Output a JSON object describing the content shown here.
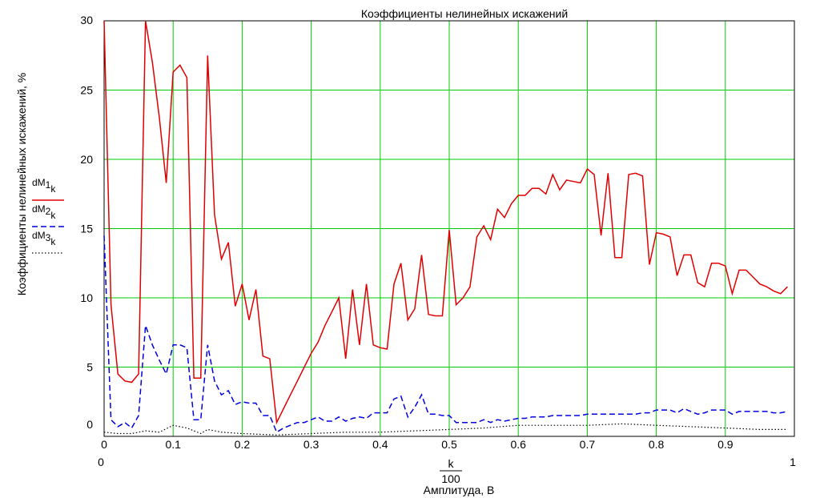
{
  "chart_data": {
    "type": "line",
    "title": "Коэффициенты нелинейных искажений",
    "xlabel": "Амплитуда, В",
    "ylabel": "Коэффициенты нелинейных искажений, %",
    "x_expr": {
      "numerator": "k",
      "denominator": "100"
    },
    "x_range_labels": {
      "min": "0",
      "max": "1"
    },
    "xlim": [
      0,
      1
    ],
    "ylim": [
      0,
      30
    ],
    "x_ticks": [
      "0",
      "0.1",
      "0.2",
      "0.3",
      "0.4",
      "0.5",
      "0.6",
      "0.7",
      "0.8",
      "0.9"
    ],
    "y_ticks": [
      {
        "value": 0,
        "label": "0"
      },
      {
        "value": 5,
        "label": "5"
      },
      {
        "value": 10,
        "label": "10"
      },
      {
        "value": 15,
        "label": "15"
      },
      {
        "value": 20,
        "label": "20"
      },
      {
        "value": 25,
        "label": "25"
      },
      {
        "value": 30,
        "label": "30"
      }
    ],
    "grid": true,
    "legend_position": "left",
    "series": [
      {
        "name": "dM1",
        "name_sub": "k",
        "color": "#e00000",
        "style": "solid",
        "points": [
          [
            0,
            30
          ],
          [
            0.01,
            9.5
          ],
          [
            0.02,
            4.5
          ],
          [
            0.03,
            4
          ],
          [
            0.04,
            3.9
          ],
          [
            0.05,
            4.5
          ],
          [
            0.06,
            30
          ],
          [
            0.07,
            27
          ],
          [
            0.08,
            23
          ],
          [
            0.09,
            18.3
          ],
          [
            0.1,
            26.3
          ],
          [
            0.11,
            26.8
          ],
          [
            0.12,
            25.9
          ],
          [
            0.13,
            4.2
          ],
          [
            0.14,
            4.2
          ],
          [
            0.15,
            27.5
          ],
          [
            0.16,
            16
          ],
          [
            0.17,
            12.8
          ],
          [
            0.18,
            14
          ],
          [
            0.19,
            9.4
          ],
          [
            0.2,
            11
          ],
          [
            0.21,
            8.4
          ],
          [
            0.22,
            10.6
          ],
          [
            0.23,
            5.8
          ],
          [
            0.24,
            5.6
          ],
          [
            0.25,
            1
          ],
          [
            0.26,
            2
          ],
          [
            0.27,
            3
          ],
          [
            0.28,
            4
          ],
          [
            0.29,
            5
          ],
          [
            0.3,
            6
          ],
          [
            0.31,
            6.8
          ],
          [
            0.32,
            8
          ],
          [
            0.33,
            9
          ],
          [
            0.34,
            10
          ],
          [
            0.35,
            5.6
          ],
          [
            0.36,
            10.6
          ],
          [
            0.37,
            6.6
          ],
          [
            0.38,
            11
          ],
          [
            0.39,
            6.6
          ],
          [
            0.4,
            6.4
          ],
          [
            0.41,
            6.3
          ],
          [
            0.42,
            11
          ],
          [
            0.43,
            12.5
          ],
          [
            0.44,
            8.4
          ],
          [
            0.45,
            9.2
          ],
          [
            0.46,
            13.1
          ],
          [
            0.47,
            8.8
          ],
          [
            0.48,
            8.7
          ],
          [
            0.49,
            8.7
          ],
          [
            0.5,
            14.9
          ],
          [
            0.51,
            9.5
          ],
          [
            0.52,
            10
          ],
          [
            0.53,
            10.8
          ],
          [
            0.54,
            14.4
          ],
          [
            0.55,
            15.2
          ],
          [
            0.56,
            14.2
          ],
          [
            0.57,
            16.4
          ],
          [
            0.58,
            15.8
          ],
          [
            0.59,
            16.8
          ],
          [
            0.6,
            17.4
          ],
          [
            0.61,
            17.4
          ],
          [
            0.62,
            17.9
          ],
          [
            0.63,
            17.9
          ],
          [
            0.64,
            17.5
          ],
          [
            0.65,
            18.9
          ],
          [
            0.66,
            17.8
          ],
          [
            0.67,
            18.5
          ],
          [
            0.68,
            18.4
          ],
          [
            0.69,
            18.3
          ],
          [
            0.7,
            19.3
          ],
          [
            0.71,
            18.9
          ],
          [
            0.72,
            14.5
          ],
          [
            0.73,
            19
          ],
          [
            0.74,
            12.9
          ],
          [
            0.75,
            12.9
          ],
          [
            0.76,
            18.9
          ],
          [
            0.77,
            19
          ],
          [
            0.78,
            18.8
          ],
          [
            0.79,
            12.4
          ],
          [
            0.8,
            14.7
          ],
          [
            0.81,
            14.6
          ],
          [
            0.82,
            14.4
          ],
          [
            0.83,
            11.6
          ],
          [
            0.84,
            13.1
          ],
          [
            0.85,
            13.1
          ],
          [
            0.86,
            11.1
          ],
          [
            0.87,
            10.8
          ],
          [
            0.88,
            12.5
          ],
          [
            0.89,
            12.5
          ],
          [
            0.9,
            12.3
          ],
          [
            0.91,
            10.3
          ],
          [
            0.92,
            12
          ],
          [
            0.93,
            12
          ],
          [
            0.94,
            11.5
          ],
          [
            0.95,
            11
          ],
          [
            0.96,
            10.8
          ],
          [
            0.97,
            10.5
          ],
          [
            0.98,
            10.3
          ],
          [
            0.99,
            10.8
          ]
        ]
      },
      {
        "name": "dM2",
        "name_sub": "k",
        "color": "#0000e0",
        "style": "dashed",
        "points": [
          [
            0,
            14.5
          ],
          [
            0.01,
            1.2
          ],
          [
            0.02,
            0.7
          ],
          [
            0.03,
            1
          ],
          [
            0.04,
            0.6
          ],
          [
            0.05,
            1.5
          ],
          [
            0.06,
            8
          ],
          [
            0.07,
            6.6
          ],
          [
            0.08,
            5.5
          ],
          [
            0.09,
            4.5
          ],
          [
            0.1,
            6.6
          ],
          [
            0.11,
            6.6
          ],
          [
            0.12,
            6.4
          ],
          [
            0.13,
            1.2
          ],
          [
            0.14,
            1.2
          ],
          [
            0.15,
            6.6
          ],
          [
            0.16,
            4
          ],
          [
            0.17,
            3
          ],
          [
            0.18,
            3.3
          ],
          [
            0.19,
            2.3
          ],
          [
            0.2,
            2.5
          ],
          [
            0.21,
            2.4
          ],
          [
            0.22,
            2.4
          ],
          [
            0.23,
            1.5
          ],
          [
            0.24,
            1.5
          ],
          [
            0.25,
            0.3
          ],
          [
            0.26,
            0.6
          ],
          [
            0.27,
            0.8
          ],
          [
            0.28,
            1
          ],
          [
            0.29,
            1
          ],
          [
            0.3,
            1.2
          ],
          [
            0.31,
            1.4
          ],
          [
            0.32,
            1.1
          ],
          [
            0.33,
            1.1
          ],
          [
            0.34,
            1.4
          ],
          [
            0.35,
            1.1
          ],
          [
            0.36,
            1.3
          ],
          [
            0.37,
            1.4
          ],
          [
            0.38,
            1.3
          ],
          [
            0.39,
            1.7
          ],
          [
            0.4,
            1.7
          ],
          [
            0.41,
            1.7
          ],
          [
            0.42,
            2.7
          ],
          [
            0.43,
            2.9
          ],
          [
            0.44,
            1.4
          ],
          [
            0.45,
            2.1
          ],
          [
            0.46,
            3
          ],
          [
            0.47,
            1.6
          ],
          [
            0.48,
            1.6
          ],
          [
            0.49,
            1.5
          ],
          [
            0.5,
            1.5
          ],
          [
            0.51,
            1
          ],
          [
            0.52,
            1
          ],
          [
            0.53,
            1
          ],
          [
            0.54,
            1
          ],
          [
            0.55,
            1.2
          ],
          [
            0.56,
            1
          ],
          [
            0.57,
            1.2
          ],
          [
            0.58,
            1.1
          ],
          [
            0.59,
            1.2
          ],
          [
            0.6,
            1.3
          ],
          [
            0.61,
            1.3
          ],
          [
            0.62,
            1.4
          ],
          [
            0.63,
            1.4
          ],
          [
            0.64,
            1.4
          ],
          [
            0.65,
            1.5
          ],
          [
            0.66,
            1.5
          ],
          [
            0.67,
            1.5
          ],
          [
            0.68,
            1.5
          ],
          [
            0.69,
            1.5
          ],
          [
            0.7,
            1.6
          ],
          [
            0.71,
            1.6
          ],
          [
            0.72,
            1.6
          ],
          [
            0.73,
            1.6
          ],
          [
            0.74,
            1.6
          ],
          [
            0.75,
            1.6
          ],
          [
            0.76,
            1.6
          ],
          [
            0.77,
            1.6
          ],
          [
            0.78,
            1.7
          ],
          [
            0.79,
            1.7
          ],
          [
            0.8,
            1.9
          ],
          [
            0.81,
            1.9
          ],
          [
            0.82,
            1.9
          ],
          [
            0.83,
            1.7
          ],
          [
            0.84,
            2
          ],
          [
            0.85,
            1.8
          ],
          [
            0.86,
            1.6
          ],
          [
            0.87,
            1.7
          ],
          [
            0.88,
            1.9
          ],
          [
            0.89,
            1.9
          ],
          [
            0.9,
            1.9
          ],
          [
            0.91,
            1.6
          ],
          [
            0.92,
            1.8
          ],
          [
            0.93,
            1.8
          ],
          [
            0.94,
            1.8
          ],
          [
            0.95,
            1.8
          ],
          [
            0.96,
            1.8
          ],
          [
            0.97,
            1.7
          ],
          [
            0.98,
            1.7
          ],
          [
            0.99,
            1.8
          ]
        ]
      },
      {
        "name": "dM3",
        "name_sub": "k",
        "color": "#000000",
        "style": "dotted",
        "points": [
          [
            0,
            0.3
          ],
          [
            0.02,
            0.2
          ],
          [
            0.04,
            0.2
          ],
          [
            0.06,
            0.4
          ],
          [
            0.08,
            0.3
          ],
          [
            0.1,
            0.8
          ],
          [
            0.12,
            0.6
          ],
          [
            0.14,
            0.2
          ],
          [
            0.15,
            0.5
          ],
          [
            0.17,
            0.3
          ],
          [
            0.2,
            0.2
          ],
          [
            0.25,
            0.1
          ],
          [
            0.3,
            0.2
          ],
          [
            0.35,
            0.3
          ],
          [
            0.4,
            0.3
          ],
          [
            0.45,
            0.4
          ],
          [
            0.5,
            0.5
          ],
          [
            0.55,
            0.6
          ],
          [
            0.6,
            0.8
          ],
          [
            0.65,
            0.8
          ],
          [
            0.7,
            0.8
          ],
          [
            0.75,
            0.9
          ],
          [
            0.8,
            0.8
          ],
          [
            0.85,
            0.7
          ],
          [
            0.9,
            0.6
          ],
          [
            0.95,
            0.5
          ],
          [
            0.99,
            0.5
          ]
        ]
      }
    ]
  }
}
